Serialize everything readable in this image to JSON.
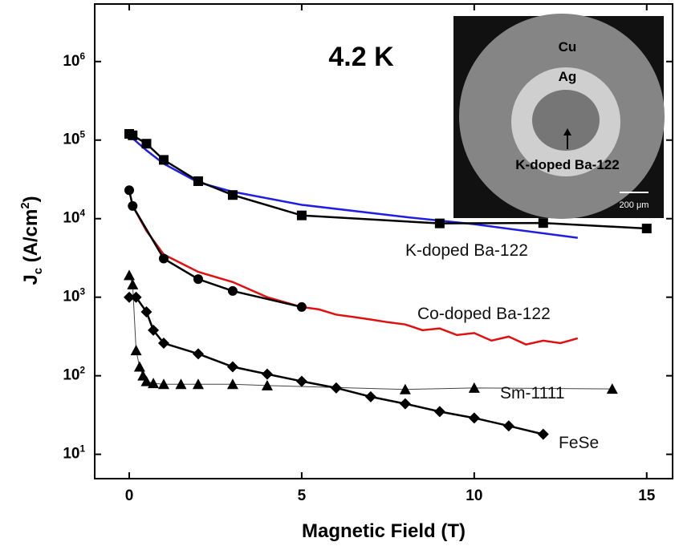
{
  "chart_data": {
    "type": "line",
    "xlabel": "Magnetic Field (T)",
    "ylabel": "J_c (A/cm^2)",
    "annotation": "4.2 K",
    "log_y": true,
    "xlim": [
      -1,
      15.75
    ],
    "xticks": [
      0,
      5,
      10,
      15
    ],
    "ylim": [
      4.9,
      5400000
    ],
    "yticks": [
      {
        "value": 10,
        "label": "10^1"
      },
      {
        "value": 100,
        "label": "10^2"
      },
      {
        "value": 1000,
        "label": "10^3"
      },
      {
        "value": 10000,
        "label": "10^4"
      },
      {
        "value": 100000,
        "label": "10^5"
      },
      {
        "value": 1000000,
        "label": "10^6"
      }
    ],
    "series": [
      {
        "color": "#1f1fe0",
        "x": [
          0,
          0.5,
          1,
          2,
          3,
          5,
          8,
          10,
          13
        ],
        "values": [
          115000,
          74000,
          50000,
          29000,
          22000,
          15000,
          10500,
          8500,
          5700
        ]
      },
      {
        "name": "K-doped Ba-122",
        "color": "#000000",
        "marker": "square",
        "x": [
          0,
          0.1,
          0.5,
          1,
          2,
          3,
          5,
          9,
          12,
          15
        ],
        "values": [
          120000,
          115000,
          90000,
          56000,
          30000,
          20000,
          11000,
          8700,
          8800,
          7500
        ]
      },
      {
        "color": "#e01010",
        "x": [
          0.1,
          0.5,
          1,
          2,
          3,
          4,
          5,
          5.5,
          6,
          6.5,
          7,
          7.5,
          8,
          8.5,
          9,
          9.5,
          10,
          10.5,
          11,
          11.5,
          12,
          12.5,
          13
        ],
        "values": [
          14500,
          7000,
          3500,
          2100,
          1560,
          1000,
          750,
          700,
          600,
          560,
          520,
          480,
          450,
          380,
          400,
          330,
          350,
          280,
          315,
          250,
          280,
          260,
          300
        ]
      },
      {
        "name": "Co-doped Ba-122",
        "color": "#000000",
        "marker": "circle",
        "x": [
          0,
          0.1,
          1,
          2,
          3,
          5
        ],
        "values": [
          23000,
          14500,
          3100,
          1700,
          1200,
          750
        ]
      },
      {
        "name": "Sm-1111",
        "color": "#000000",
        "marker": "triangle",
        "x": [
          0,
          0.1,
          0.2,
          0.3,
          0.4,
          0.5,
          0.7,
          1,
          1.5,
          2,
          3,
          4,
          8,
          10,
          14
        ],
        "values": [
          1900,
          1450,
          210,
          130,
          100,
          85,
          80,
          78,
          78,
          78,
          78,
          75,
          67,
          70,
          68
        ]
      },
      {
        "name": "FeSe",
        "color": "#000000",
        "marker": "diamond",
        "x": [
          0,
          0.2,
          0.5,
          0.7,
          1,
          2,
          3,
          4,
          5,
          6,
          7,
          8,
          9,
          10,
          11,
          12
        ],
        "values": [
          1000,
          1000,
          650,
          380,
          260,
          190,
          130,
          105,
          85,
          70,
          54,
          44,
          35,
          29,
          23,
          18
        ]
      }
    ],
    "inset": {
      "labels": [
        "Cu",
        "Ag",
        "K-doped Ba-122",
        "200 μm"
      ]
    }
  }
}
